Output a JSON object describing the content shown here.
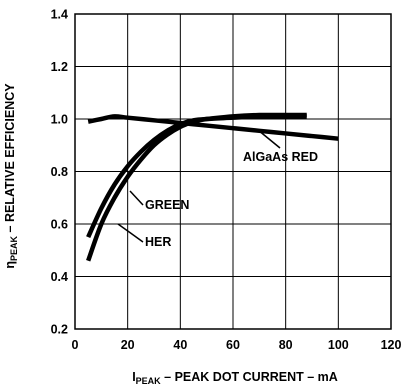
{
  "chart_data": {
    "type": "line",
    "title": "",
    "xlabel": {
      "prefix": "I",
      "subscript": "PEAK",
      "rest": " – PEAK DOT CURRENT – mA"
    },
    "ylabel": {
      "prefix": "η",
      "subscript": "PEAK",
      "rest": " – RELATIVE EFFICIENCY"
    },
    "xlim": [
      0,
      120
    ],
    "ylim": [
      0.2,
      1.4
    ],
    "xticks": [
      "0",
      "20",
      "40",
      "60",
      "80",
      "100",
      "120"
    ],
    "yticks": [
      "0.2",
      "0.4",
      "0.6",
      "0.8",
      "1.0",
      "1.2",
      "1.4"
    ],
    "grid": true,
    "series": [
      {
        "name": "AlGaAs RED",
        "x": [
          5,
          10,
          15,
          20,
          30,
          40,
          50,
          60,
          70,
          80,
          90,
          100
        ],
        "y": [
          0.99,
          1.0,
          1.01,
          1.005,
          0.995,
          0.985,
          0.975,
          0.965,
          0.955,
          0.945,
          0.935,
          0.925
        ]
      },
      {
        "name": "GREEN",
        "x": [
          5,
          10,
          15,
          20,
          25,
          30,
          35,
          40,
          45,
          50,
          60,
          70,
          80,
          88
        ],
        "y": [
          0.55,
          0.66,
          0.75,
          0.82,
          0.875,
          0.92,
          0.955,
          0.98,
          0.995,
          1.0,
          1.01,
          1.015,
          1.015,
          1.015
        ]
      },
      {
        "name": "HER",
        "x": [
          5,
          10,
          15,
          20,
          25,
          30,
          35,
          40,
          45,
          50,
          60,
          70,
          80,
          88
        ],
        "y": [
          0.46,
          0.6,
          0.7,
          0.78,
          0.845,
          0.9,
          0.94,
          0.97,
          0.99,
          1.0,
          1.005,
          1.01,
          1.01,
          1.01
        ]
      }
    ],
    "annotations": [
      {
        "label": "AlGaAs RED",
        "series": "AlGaAs RED"
      },
      {
        "label": "GREEN",
        "series": "GREEN"
      },
      {
        "label": "HER",
        "series": "HER"
      }
    ]
  }
}
